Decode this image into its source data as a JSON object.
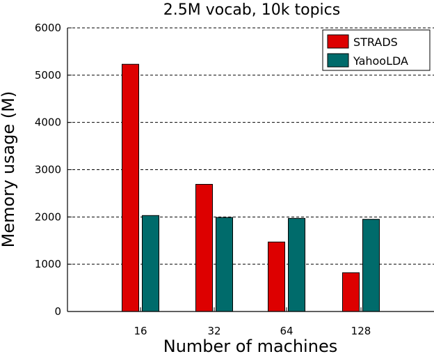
{
  "chart_data": {
    "type": "bar",
    "title": "2.5M vocab, 10k topics",
    "xlabel": "Number of machines",
    "ylabel": "Memory usage (M)",
    "categories": [
      "16",
      "32",
      "64",
      "128"
    ],
    "ylim": [
      0,
      6000
    ],
    "yticks": [
      0,
      1000,
      2000,
      3000,
      4000,
      5000,
      6000
    ],
    "grid": true,
    "legend_position": "top-right",
    "series": [
      {
        "name": "STRADS",
        "color": "#dd0000",
        "values": [
          5230,
          2690,
          1470,
          820
        ]
      },
      {
        "name": "YahooLDA",
        "color": "#006b6b",
        "values": [
          2030,
          1990,
          1970,
          1950
        ]
      }
    ]
  }
}
